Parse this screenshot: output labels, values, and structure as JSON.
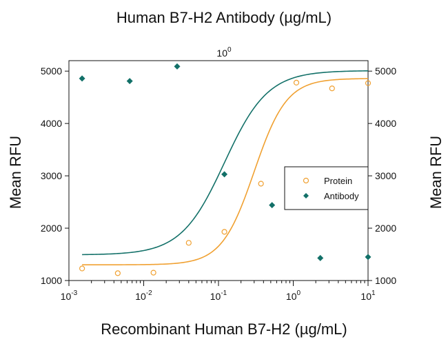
{
  "chart_data": {
    "type": "scatter",
    "title": "Human B7-H2 Antibody (µg/mL)",
    "top_tick_label": {
      "base": "10",
      "exp": "0"
    },
    "xlabel": "Recombinant Human B7-H2 (µg/mL)",
    "ylabel_left": "Mean RFU",
    "ylabel_right": "Mean RFU",
    "x_scale": "log",
    "xlim": [
      0.001,
      10
    ],
    "ylim": [
      1000,
      5200
    ],
    "x_ticks": [
      {
        "value": 0.001,
        "base": "10",
        "exp": "-3"
      },
      {
        "value": 0.01,
        "base": "10",
        "exp": "-2"
      },
      {
        "value": 0.1,
        "base": "10",
        "exp": "-1"
      },
      {
        "value": 1,
        "base": "10",
        "exp": "0"
      },
      {
        "value": 10,
        "base": "10",
        "exp": "1"
      }
    ],
    "y_ticks": [
      "1000",
      "2000",
      "3000",
      "4000",
      "5000"
    ],
    "legend_position": "center-right",
    "series": [
      {
        "name": "Protein",
        "marker": "circle-open",
        "color": "#F0A030",
        "x": [
          0.0015,
          0.0045,
          0.0135,
          0.04,
          0.12,
          0.37,
          1.1,
          3.3,
          10
        ],
        "y": [
          1230,
          1140,
          1150,
          1720,
          1930,
          2850,
          4780,
          4670,
          4770
        ],
        "fit": {
          "bottom": 1300,
          "top": 4860,
          "ec50": 0.3,
          "hill": 2.0
        }
      },
      {
        "name": "Antibody",
        "marker": "diamond-filled",
        "color": "#127068",
        "x": [
          0.0015,
          0.0065,
          0.028,
          0.12,
          0.52,
          2.3,
          10
        ],
        "y": [
          4860,
          4810,
          5090,
          3030,
          2440,
          1430,
          1450
        ],
        "fit": {
          "bottom": 1490,
          "top": 5010,
          "ec50": 0.12,
          "hill": 1.5
        }
      }
    ]
  }
}
